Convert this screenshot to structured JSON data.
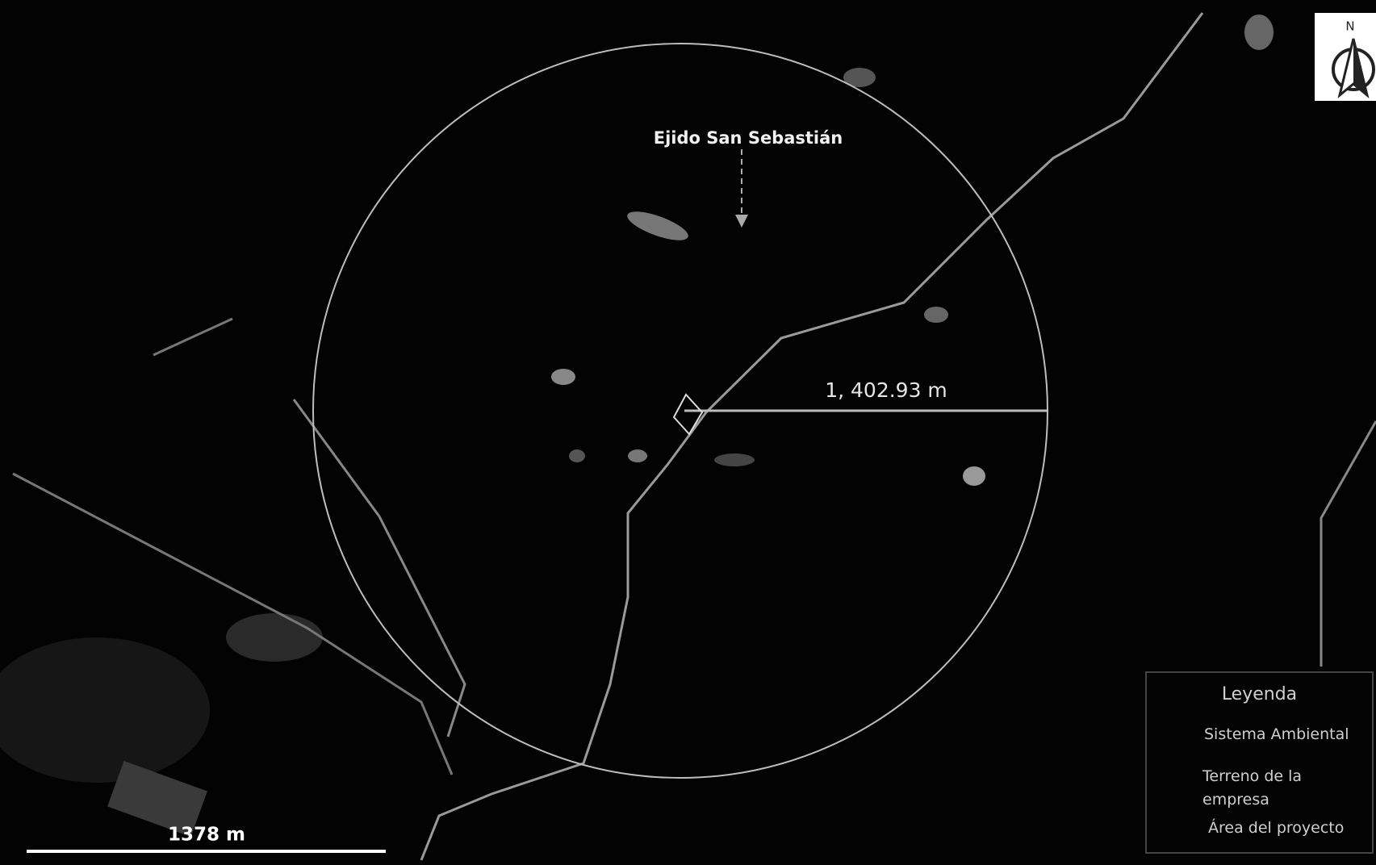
{
  "map": {
    "place_label": "Ejido San Sebastián",
    "radius_label": "1, 402.93 m",
    "scale_label": "1378 m",
    "north_label": "N",
    "legend": {
      "title": "Leyenda",
      "items": [
        "Sistema Ambiental",
        "Terreno de la empresa",
        "Área del proyecto"
      ]
    }
  }
}
